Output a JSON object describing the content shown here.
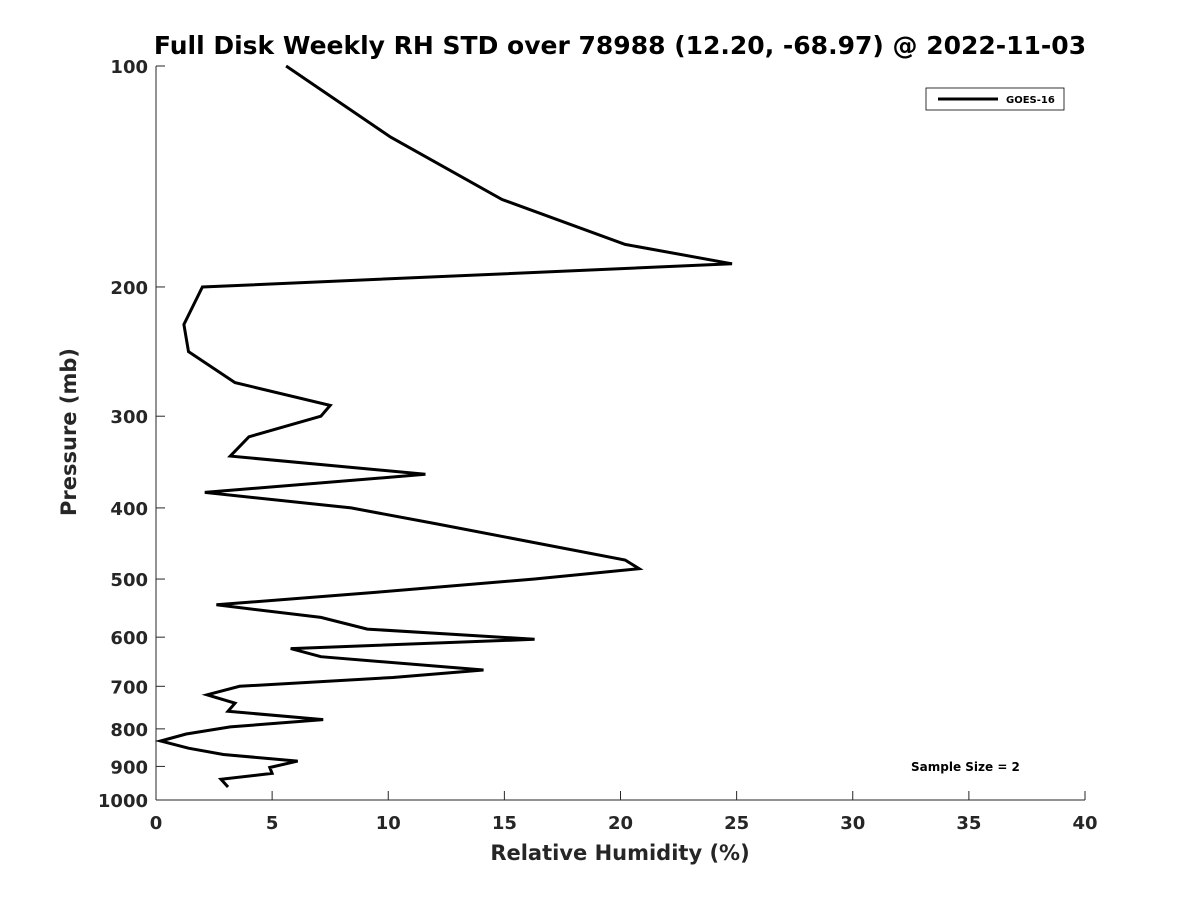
{
  "chart_data": {
    "type": "line",
    "title": "Full Disk Weekly RH STD over 78988 (12.20, -68.97) @ 2022-11-03",
    "xlabel": "Relative Humidity (%)",
    "ylabel": "Pressure (mb)",
    "xlim": [
      0,
      40
    ],
    "ylim": [
      100,
      1000
    ],
    "y_scale": "log",
    "y_reversed": true,
    "xticks": [
      0,
      5,
      10,
      15,
      20,
      25,
      30,
      35,
      40
    ],
    "yticks": [
      100,
      200,
      300,
      400,
      500,
      600,
      700,
      800,
      900,
      1000
    ],
    "grid": false,
    "legend_position": "top-right",
    "series": [
      {
        "name": "GOES-16",
        "color": "#000000",
        "points": [
          [
            5.6,
            100
          ],
          [
            10.1,
            125
          ],
          [
            14.9,
            152
          ],
          [
            20.2,
            175
          ],
          [
            24.8,
            186
          ],
          [
            2.0,
            200
          ],
          [
            1.2,
            225
          ],
          [
            1.4,
            245
          ],
          [
            3.4,
            270
          ],
          [
            7.5,
            290
          ],
          [
            7.1,
            300
          ],
          [
            4.0,
            320
          ],
          [
            3.2,
            340
          ],
          [
            11.6,
            360
          ],
          [
            2.1,
            381
          ],
          [
            8.4,
            400
          ],
          [
            12.0,
            420
          ],
          [
            20.2,
            471
          ],
          [
            20.8,
            484
          ],
          [
            16.3,
            500
          ],
          [
            9.5,
            521
          ],
          [
            2.6,
            542
          ],
          [
            7.1,
            564
          ],
          [
            9.1,
            585
          ],
          [
            16.3,
            604
          ],
          [
            5.8,
            622
          ],
          [
            7.1,
            638
          ],
          [
            14.1,
            665
          ],
          [
            10.2,
            681
          ],
          [
            3.6,
            700
          ],
          [
            2.2,
            719
          ],
          [
            3.4,
            738
          ],
          [
            3.1,
            757
          ],
          [
            7.2,
            777
          ],
          [
            3.2,
            795
          ],
          [
            1.3,
            813
          ],
          [
            0.2,
            831
          ],
          [
            1.4,
            850
          ],
          [
            2.9,
            867
          ],
          [
            6.1,
            885
          ],
          [
            4.9,
            903
          ],
          [
            5.0,
            920
          ],
          [
            2.8,
            937
          ],
          [
            3.1,
            960
          ]
        ]
      }
    ],
    "annotations": [
      "Sample Size = 2"
    ]
  }
}
